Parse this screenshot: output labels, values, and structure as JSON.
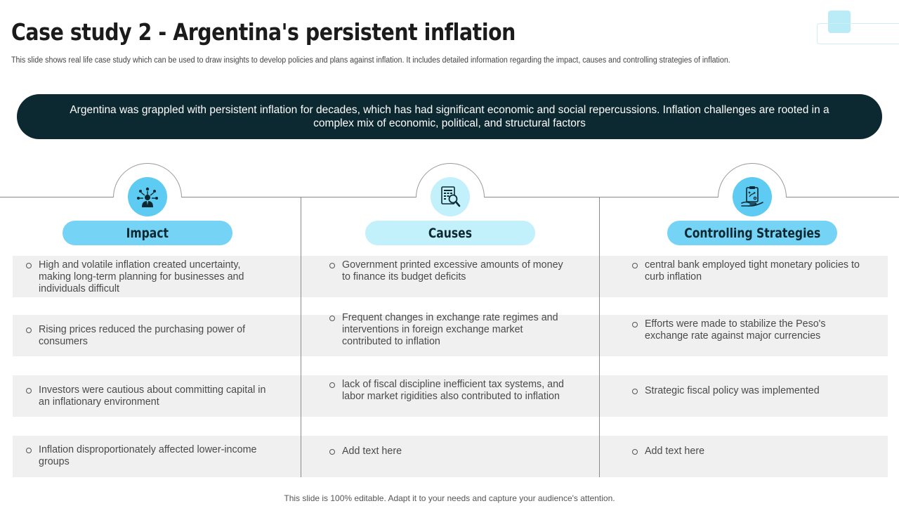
{
  "header": {
    "title": "Case study 2 - Argentina's persistent inflation",
    "subtitle": "This slide shows real life case study which can be used to draw insights to develop policies and plans against inflation. It includes detailed information regarding the impact, causes and controlling strategies of inflation."
  },
  "banner": {
    "text": "Argentina was grappled with persistent inflation for decades, which has had significant economic and social repercussions. Inflation challenges are rooted in a complex mix of economic, political, and structural factors"
  },
  "columns": [
    {
      "heading": "Impact",
      "icon": "businessman-network-icon",
      "accent": "#75d3f5",
      "items": [
        "High and volatile inflation created uncertainty, making long-term planning for businesses and individuals difficult",
        "Rising prices reduced the purchasing power of consumers",
        "Investors were cautious about committing capital in an inflationary environment",
        "Inflation disproportionately affected lower-income groups"
      ]
    },
    {
      "heading": "Causes",
      "icon": "document-magnifier-icon",
      "accent": "#c3f1fb",
      "items": [
        "Government printed excessive amounts of money to finance its budget deficits",
        "Frequent changes in exchange rate regimes and interventions in foreign exchange market contributed to inflation",
        "lack of fiscal discipline inefficient tax systems, and labor market rigidities also contributed to inflation",
        "Add text here"
      ]
    },
    {
      "heading": "Controlling Strategies",
      "icon": "strategy-clipboard-hand-icon",
      "accent": "#75d3f5",
      "items": [
        "central bank employed tight monetary policies to curb inflation",
        "Efforts were made to stabilize the Peso's exchange rate against major currencies",
        "Strategic fiscal policy was implemented",
        "Add text here"
      ]
    }
  ],
  "footer": {
    "text": "This slide is 100% editable. Adapt it to your needs and capture your audience's attention."
  }
}
